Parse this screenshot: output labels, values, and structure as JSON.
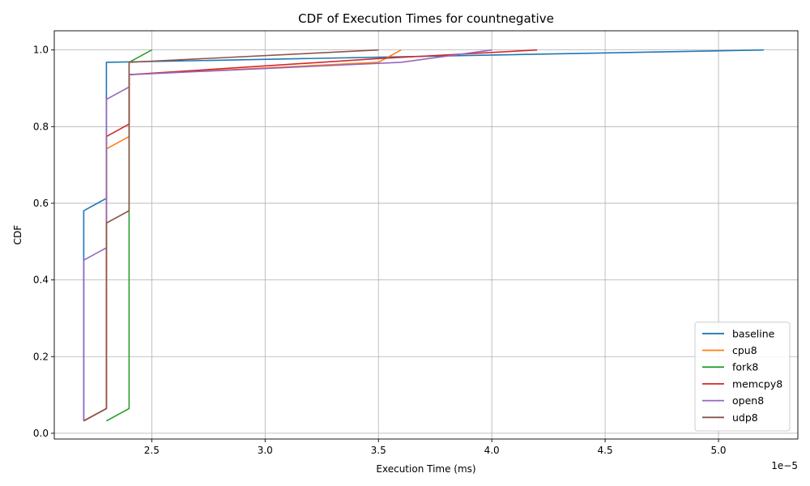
{
  "chart_data": {
    "type": "line",
    "title": "CDF of Execution Times for countnegative",
    "xlabel": "Execution Time (ms)",
    "ylabel": "CDF",
    "x_scale_label": "1e−5",
    "xlim": [
      2.07,
      5.35
    ],
    "ylim": [
      -0.015,
      1.05
    ],
    "x_ticks": [
      2.5,
      3.0,
      3.5,
      4.0,
      4.5,
      5.0
    ],
    "x_tick_labels": [
      "2.5",
      "3.0",
      "3.5",
      "4.0",
      "4.5",
      "5.0"
    ],
    "y_ticks": [
      0.0,
      0.2,
      0.4,
      0.6,
      0.8,
      1.0
    ],
    "y_tick_labels": [
      "0.0",
      "0.2",
      "0.4",
      "0.6",
      "0.8",
      "1.0"
    ],
    "grid": true,
    "legend_position": "lower-right",
    "series": [
      {
        "name": "baseline",
        "color": "#1f77b4",
        "points": [
          [
            2.2,
            0.0323
          ],
          [
            2.2,
            0.5806
          ],
          [
            2.3,
            0.6129
          ],
          [
            2.3,
            0.9677
          ],
          [
            5.2,
            1.0
          ]
        ]
      },
      {
        "name": "cpu8",
        "color": "#ff7f0e",
        "points": [
          [
            2.2,
            0.0323
          ],
          [
            2.3,
            0.0645
          ],
          [
            2.3,
            0.7419
          ],
          [
            2.4,
            0.7742
          ],
          [
            2.4,
            0.9355
          ],
          [
            3.5,
            0.9677
          ],
          [
            3.6,
            1.0
          ]
        ]
      },
      {
        "name": "fork8",
        "color": "#2ca02c",
        "points": [
          [
            2.3,
            0.0323
          ],
          [
            2.4,
            0.0645
          ],
          [
            2.4,
            0.9677
          ],
          [
            2.5,
            1.0
          ]
        ]
      },
      {
        "name": "memcpy8",
        "color": "#d62728",
        "points": [
          [
            2.2,
            0.0323
          ],
          [
            2.3,
            0.0645
          ],
          [
            2.3,
            0.7742
          ],
          [
            2.4,
            0.8065
          ],
          [
            2.4,
            0.9355
          ],
          [
            3.5,
            0.9774
          ],
          [
            4.2,
            1.0
          ]
        ]
      },
      {
        "name": "open8",
        "color": "#9467bd",
        "points": [
          [
            2.2,
            0.0323
          ],
          [
            2.2,
            0.4516
          ],
          [
            2.3,
            0.4839
          ],
          [
            2.3,
            0.871
          ],
          [
            2.4,
            0.9032
          ],
          [
            2.4,
            0.9355
          ],
          [
            3.6,
            0.9677
          ],
          [
            4.0,
            1.0
          ]
        ]
      },
      {
        "name": "udp8",
        "color": "#8c564b",
        "points": [
          [
            2.2,
            0.0323
          ],
          [
            2.3,
            0.0645
          ],
          [
            2.3,
            0.5484
          ],
          [
            2.4,
            0.5806
          ],
          [
            2.4,
            0.9677
          ],
          [
            3.5,
            1.0
          ]
        ]
      }
    ]
  }
}
